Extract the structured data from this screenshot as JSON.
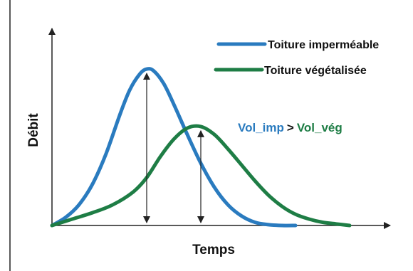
{
  "chart_data": {
    "type": "line",
    "title": "",
    "xlabel": "Temps",
    "ylabel": "Débit",
    "xlim": [
      0,
      100
    ],
    "ylim": [
      0,
      100
    ],
    "grid": false,
    "legend_placement": "top-right",
    "annotation": {
      "lhs": "Vol_imp",
      "op": ">",
      "rhs": "Vol_vég"
    },
    "series": [
      {
        "name": "Toiture imperméable",
        "color": "#2a7bbf",
        "x": [
          0,
          4,
          8,
          12,
          16,
          20,
          23,
          26,
          28,
          30,
          33,
          36,
          40,
          44,
          48,
          52,
          56,
          60,
          64,
          68,
          72
        ],
        "y": [
          0,
          5,
          13,
          26,
          45,
          69,
          85,
          95,
          98,
          97,
          89,
          76,
          57,
          39,
          24,
          13,
          6,
          2,
          0.5,
          0,
          0
        ]
      },
      {
        "name": "Toiture végétalisée",
        "color": "#1e7d45",
        "x": [
          0,
          6,
          12,
          18,
          24,
          28,
          32,
          36,
          40,
          44,
          48,
          52,
          56,
          60,
          64,
          68,
          72,
          76,
          80,
          84,
          88
        ],
        "y": [
          0,
          4,
          8,
          13,
          21,
          30,
          43,
          54,
          61,
          62,
          57,
          48,
          38,
          28,
          19,
          12,
          7,
          4,
          2,
          1,
          0
        ]
      }
    ],
    "peak_markers": [
      {
        "series": "Toiture imperméable",
        "x": 28,
        "y": 98
      },
      {
        "series": "Toiture végétalisée",
        "x": 44,
        "y": 62
      }
    ]
  }
}
